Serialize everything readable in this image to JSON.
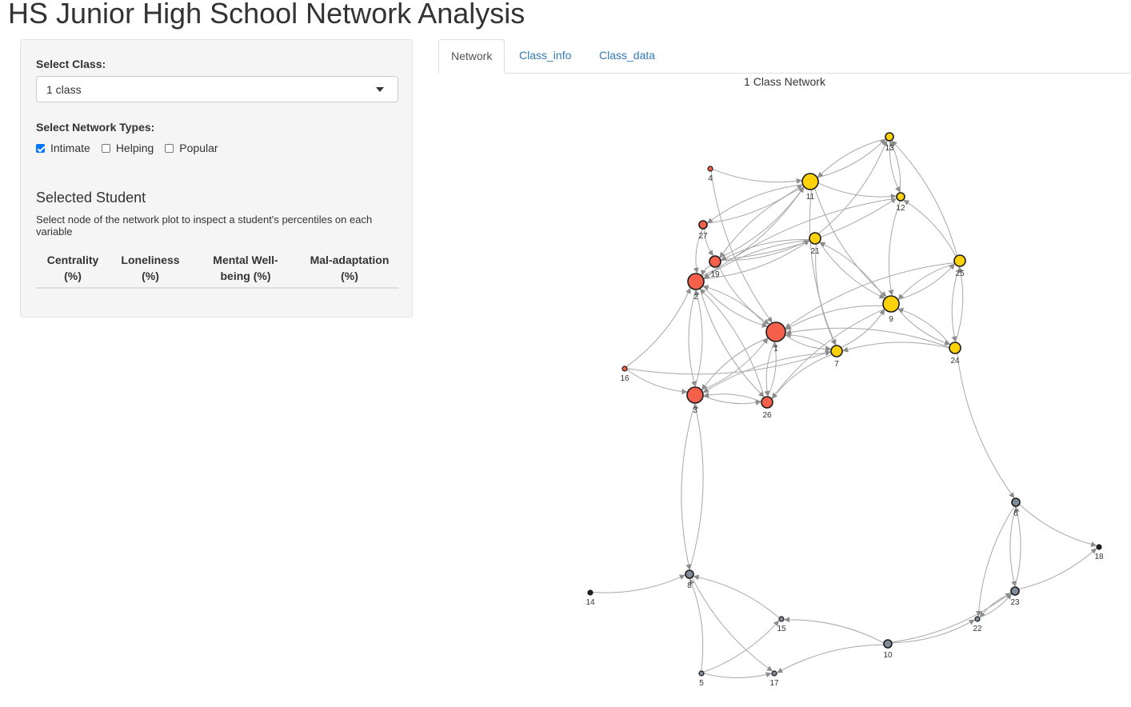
{
  "app": {
    "title": "HS Junior High School Network Analysis"
  },
  "sidebar": {
    "class_label": "Select Class:",
    "class_value": "1 class",
    "types_label": "Select Network Types:",
    "types": [
      {
        "label": "Intimate",
        "checked": true
      },
      {
        "label": "Helping",
        "checked": false
      },
      {
        "label": "Popular",
        "checked": false
      }
    ],
    "selected_title": "Selected Student",
    "selected_desc": "Select node of the network plot to inspect a student's percentiles on each variable",
    "table_headers": [
      "Centrality (%)",
      "Loneliness (%)",
      "Mental Well-being (%)",
      "Mal-adaptation (%)"
    ]
  },
  "tabs": [
    "Network",
    "Class_info",
    "Class_data"
  ],
  "active_tab": "Network",
  "network": {
    "title": "1 Class Network",
    "colors": {
      "red": "#f5604b",
      "yellow": "#fdd20a",
      "gray": "#808b99",
      "edge": "#a8a8a8",
      "arrow": "#8c8c8c"
    },
    "nodes": [
      {
        "id": "1",
        "group": "red",
        "size": 4
      },
      {
        "id": "2",
        "group": "red",
        "size": 3
      },
      {
        "id": "3",
        "group": "red",
        "size": 3
      },
      {
        "id": "4",
        "group": "red",
        "size": 0
      },
      {
        "id": "5",
        "group": "gray",
        "size": 0
      },
      {
        "id": "6",
        "group": "gray",
        "size": 1
      },
      {
        "id": "7",
        "group": "yellow",
        "size": 2
      },
      {
        "id": "8",
        "group": "gray",
        "size": 1
      },
      {
        "id": "9",
        "group": "yellow",
        "size": 3
      },
      {
        "id": "10",
        "group": "gray",
        "size": 1
      },
      {
        "id": "11",
        "group": "yellow",
        "size": 3
      },
      {
        "id": "12",
        "group": "yellow",
        "size": 1
      },
      {
        "id": "13",
        "group": "yellow",
        "size": 1
      },
      {
        "id": "14",
        "group": "black",
        "size": 0
      },
      {
        "id": "15",
        "group": "gray",
        "size": 0
      },
      {
        "id": "16",
        "group": "red",
        "size": 0
      },
      {
        "id": "17",
        "group": "gray",
        "size": 0
      },
      {
        "id": "18",
        "group": "black",
        "size": 0
      },
      {
        "id": "19",
        "group": "red",
        "size": 2
      },
      {
        "id": "21",
        "group": "yellow",
        "size": 2
      },
      {
        "id": "22",
        "group": "gray",
        "size": 0
      },
      {
        "id": "23",
        "group": "gray",
        "size": 1
      },
      {
        "id": "24",
        "group": "yellow",
        "size": 2
      },
      {
        "id": "25",
        "group": "yellow",
        "size": 2
      },
      {
        "id": "26",
        "group": "red",
        "size": 2
      },
      {
        "id": "27",
        "group": "red",
        "size": 1
      }
    ],
    "edges": [
      [
        "4",
        "1"
      ],
      [
        "4",
        "11"
      ],
      [
        "27",
        "11"
      ],
      [
        "19",
        "11"
      ],
      [
        "19",
        "12"
      ],
      [
        "2",
        "11"
      ],
      [
        "2",
        "21"
      ],
      [
        "2",
        "1"
      ],
      [
        "2",
        "3"
      ],
      [
        "2",
        "26"
      ],
      [
        "27",
        "19"
      ],
      [
        "27",
        "2"
      ],
      [
        "19",
        "2"
      ],
      [
        "19",
        "1"
      ],
      [
        "19",
        "21"
      ],
      [
        "21",
        "19"
      ],
      [
        "21",
        "2"
      ],
      [
        "21",
        "7"
      ],
      [
        "21",
        "9"
      ],
      [
        "21",
        "13"
      ],
      [
        "11",
        "27"
      ],
      [
        "11",
        "13"
      ],
      [
        "11",
        "12"
      ],
      [
        "11",
        "9"
      ],
      [
        "11",
        "7"
      ],
      [
        "11",
        "19"
      ],
      [
        "13",
        "11"
      ],
      [
        "13",
        "12"
      ],
      [
        "12",
        "13"
      ],
      [
        "12",
        "9"
      ],
      [
        "12",
        "2"
      ],
      [
        "25",
        "13"
      ],
      [
        "25",
        "12"
      ],
      [
        "25",
        "9"
      ],
      [
        "25",
        "24"
      ],
      [
        "25",
        "1"
      ],
      [
        "9",
        "1"
      ],
      [
        "9",
        "24"
      ],
      [
        "9",
        "25"
      ],
      [
        "9",
        "26"
      ],
      [
        "9",
        "21"
      ],
      [
        "24",
        "9"
      ],
      [
        "24",
        "25"
      ],
      [
        "24",
        "7"
      ],
      [
        "24",
        "1"
      ],
      [
        "24",
        "6"
      ],
      [
        "7",
        "1"
      ],
      [
        "7",
        "26"
      ],
      [
        "7",
        "3"
      ],
      [
        "7",
        "9"
      ],
      [
        "1",
        "3"
      ],
      [
        "1",
        "2"
      ],
      [
        "1",
        "26"
      ],
      [
        "1",
        "7"
      ],
      [
        "3",
        "2"
      ],
      [
        "3",
        "1"
      ],
      [
        "3",
        "26"
      ],
      [
        "26",
        "3"
      ],
      [
        "26",
        "2"
      ],
      [
        "26",
        "1"
      ],
      [
        "16",
        "2"
      ],
      [
        "16",
        "3"
      ],
      [
        "16",
        "7"
      ],
      [
        "8",
        "3"
      ],
      [
        "3",
        "8"
      ],
      [
        "14",
        "8"
      ],
      [
        "15",
        "8"
      ],
      [
        "5",
        "8"
      ],
      [
        "5",
        "15"
      ],
      [
        "5",
        "17"
      ],
      [
        "8",
        "17"
      ],
      [
        "10",
        "15"
      ],
      [
        "10",
        "17"
      ],
      [
        "10",
        "22"
      ],
      [
        "10",
        "23"
      ],
      [
        "6",
        "23"
      ],
      [
        "23",
        "6"
      ],
      [
        "6",
        "22"
      ],
      [
        "6",
        "18"
      ],
      [
        "23",
        "18"
      ],
      [
        "23",
        "22"
      ],
      [
        "22",
        "23"
      ]
    ]
  }
}
